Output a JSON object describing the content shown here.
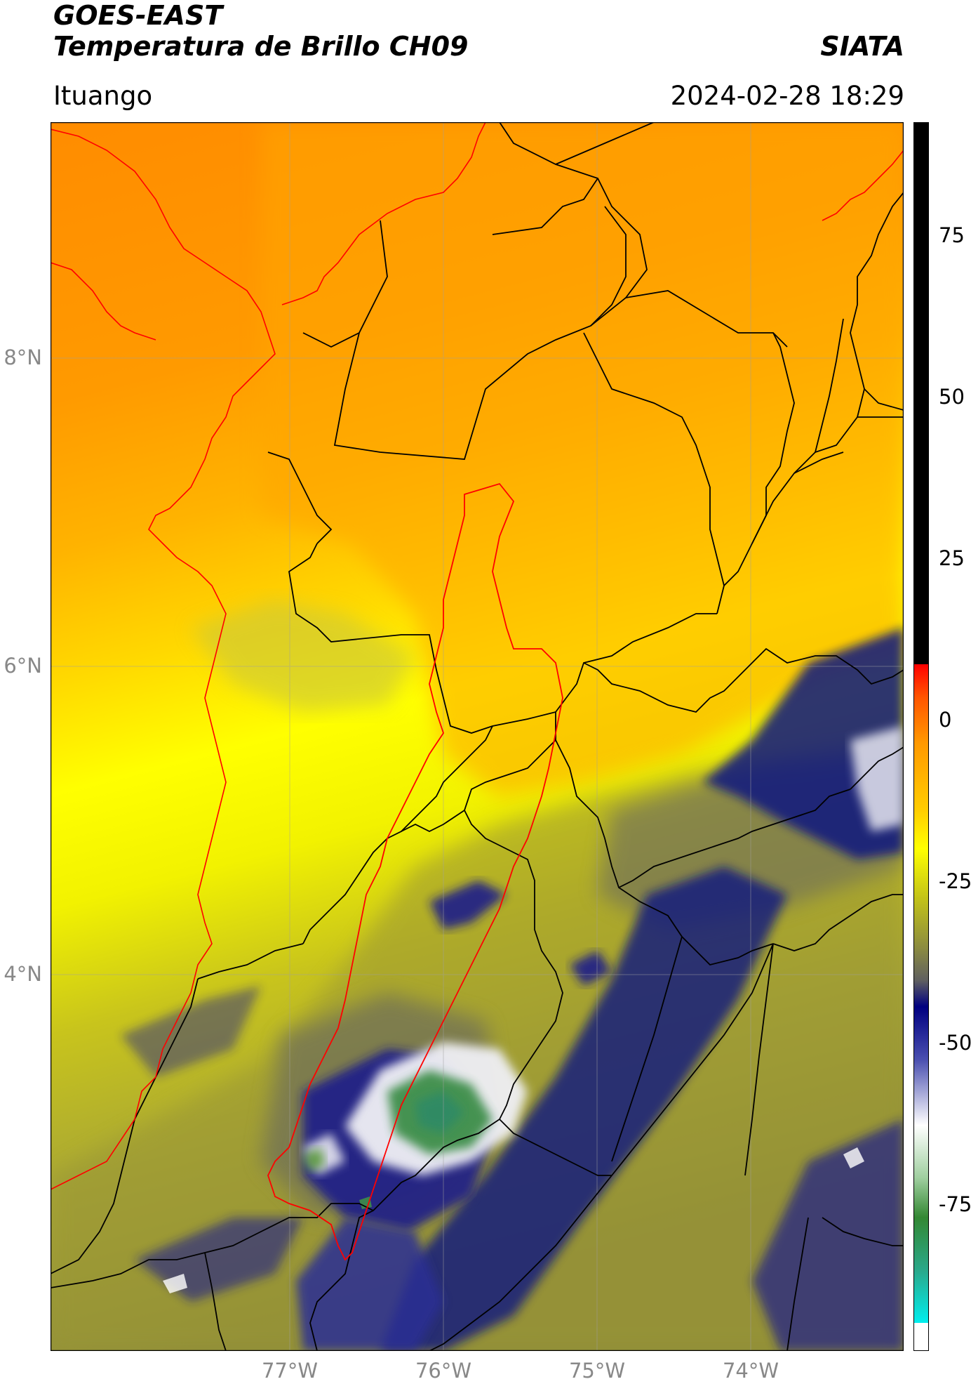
{
  "header": {
    "satellite": "GOES-EAST",
    "product": "Temperatura de Brillo CH09",
    "organization": "SIATA",
    "region": "Ituango",
    "datetime": "2024-02-28 18:29"
  },
  "map": {
    "lat_ticks": [
      "8°N",
      "6°N",
      "4°N"
    ],
    "lon_ticks": [
      "77°W",
      "76°W",
      "75°W",
      "74°W"
    ],
    "boundary_colors": {
      "departments": "#000000",
      "basin": "#ff0000",
      "coastline": "#ff0000"
    }
  },
  "colorbar": {
    "tick_labels": [
      "75",
      "50",
      "25",
      "0",
      "-25",
      "-50",
      "-75"
    ],
    "colors": {
      "above_max": "#000000",
      "warm_top": "#ff0000",
      "orange": "#ff9900",
      "yellow": "#ffff00",
      "olive": "#999933",
      "gray": "#666666",
      "navy": "#000080",
      "white": "#ffffff",
      "green": "#338833",
      "cyan": "#00dddd"
    }
  }
}
